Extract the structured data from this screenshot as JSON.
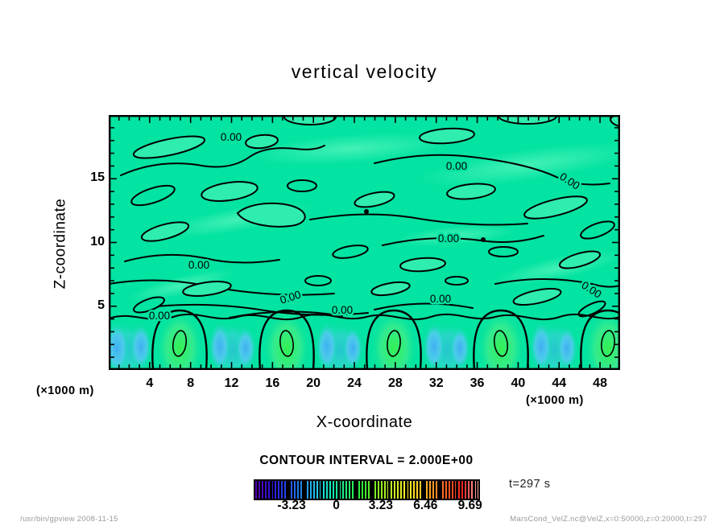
{
  "title": "vertical velocity",
  "plot": {
    "contour_label": "0.00",
    "x_axis": {
      "label": "X-coordinate",
      "unit": "(×1000 m)",
      "ticks": [
        4,
        8,
        12,
        16,
        20,
        24,
        28,
        32,
        36,
        40,
        44,
        48
      ],
      "range": [
        0,
        50
      ]
    },
    "y_axis": {
      "label": "Z-coordinate",
      "unit": "(×1000 m)",
      "ticks": [
        5,
        10,
        15
      ],
      "range": [
        0,
        20
      ]
    }
  },
  "contour_info": "CONTOUR INTERVAL = 2.000E+00",
  "colorbar": {
    "ticks": [
      -3.23,
      0,
      3.23,
      6.46,
      9.69
    ]
  },
  "annotation": "t=297 s",
  "footer": {
    "left": "/usr/bin/gpview  2008-11-15",
    "right": "MarsCond_VelZ.nc@VelZ,x=0:50000,z=0:20000,t=297"
  },
  "chart_data": {
    "type": "heatmap",
    "subtype": "filled-contour",
    "title": "vertical velocity",
    "xlabel": "X-coordinate (×1000 m)",
    "ylabel": "Z-coordinate (×1000 m)",
    "xlim": [
      0,
      50
    ],
    "ylim": [
      0,
      20
    ],
    "x_ticks": [
      4,
      8,
      12,
      16,
      20,
      24,
      28,
      32,
      36,
      40,
      44,
      48
    ],
    "y_ticks": [
      5,
      10,
      15
    ],
    "contour_interval": 2.0,
    "contour_line_labels": [
      "0.00"
    ],
    "colorbar_ticks": [
      -3.23,
      0,
      3.23,
      6.46,
      9.69
    ],
    "colorbar_range_approx": [
      -6.0,
      10.3
    ],
    "time": "t=297 s",
    "field_description": "Vertical velocity near zero (0.00 contours, teal background) above z≈4000 m; periodic convective cells below: green updraft plumes (~+3) centered near x≈7,17.5,28,38.5,49 (×1000 m) with blue downdrafts (~−2) between them"
  }
}
